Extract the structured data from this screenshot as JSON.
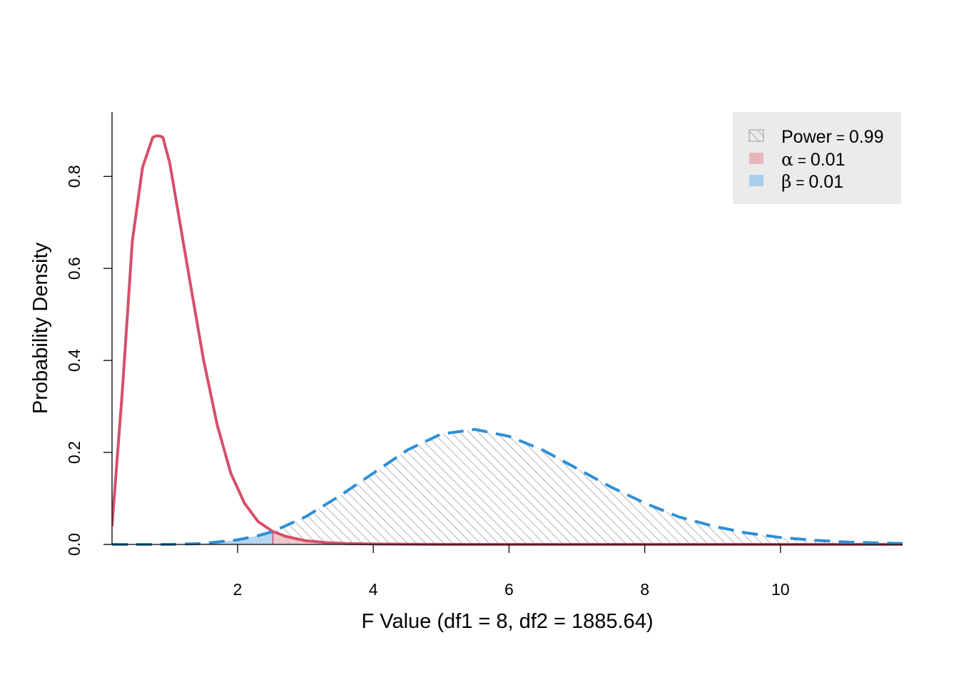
{
  "chart_data": {
    "type": "area",
    "title": "",
    "xlabel": "F Value (df1 = 8, df2 = 1885.64)",
    "ylabel": "Probability Density",
    "xlim": [
      0.15,
      11.8
    ],
    "ylim": [
      0,
      0.94
    ],
    "x_ticks": [
      2,
      4,
      6,
      8,
      10
    ],
    "x_tick_labels": [
      "2",
      "4",
      "6",
      "8",
      "10"
    ],
    "y_ticks": [
      0.0,
      0.2,
      0.4,
      0.6,
      0.8
    ],
    "y_tick_labels": [
      "0.0",
      "0.2",
      "0.4",
      "0.6",
      "0.8"
    ],
    "critical_value": 2.52,
    "grid": false,
    "legend_position": "top-right",
    "legend": [
      {
        "symbol": "",
        "label": "Power",
        "value": "0.99",
        "style": "hatch",
        "color": "#9e9e9e"
      },
      {
        "symbol": "α",
        "label": "",
        "value": "0.01",
        "style": "fill",
        "color": "#e8b4bd"
      },
      {
        "symbol": "β",
        "label": "",
        "value": "0.01",
        "style": "fill",
        "color": "#a9cfec"
      }
    ],
    "series": [
      {
        "style": "solid",
        "color": "#d64f6a",
        "x": [
          0.15,
          0.3,
          0.45,
          0.6,
          0.75,
          0.8,
          0.85,
          0.9,
          1.0,
          1.15,
          1.3,
          1.5,
          1.7,
          1.9,
          2.1,
          2.3,
          2.52,
          2.7,
          3.0,
          3.3,
          3.6,
          4.0,
          5.0,
          6.0,
          8.0,
          10.0,
          11.8
        ],
        "y": [
          0.04,
          0.33,
          0.66,
          0.82,
          0.885,
          0.888,
          0.888,
          0.885,
          0.83,
          0.7,
          0.57,
          0.4,
          0.26,
          0.155,
          0.09,
          0.05,
          0.028,
          0.018,
          0.008,
          0.004,
          0.002,
          0.001,
          0.0,
          0.0,
          0.0,
          0.0,
          0.0
        ]
      },
      {
        "style": "dashed",
        "color": "#2e8fd6",
        "x": [
          0.15,
          1.0,
          1.5,
          2.0,
          2.3,
          2.52,
          3.0,
          3.5,
          4.0,
          4.5,
          5.0,
          5.5,
          6.0,
          6.5,
          7.0,
          7.5,
          8.0,
          8.5,
          9.0,
          9.5,
          10.0,
          10.5,
          11.0,
          11.8
        ],
        "y": [
          0.0,
          0.0,
          0.002,
          0.01,
          0.019,
          0.028,
          0.06,
          0.105,
          0.155,
          0.205,
          0.24,
          0.25,
          0.235,
          0.205,
          0.165,
          0.125,
          0.09,
          0.06,
          0.04,
          0.025,
          0.015,
          0.009,
          0.005,
          0.002
        ]
      }
    ]
  }
}
